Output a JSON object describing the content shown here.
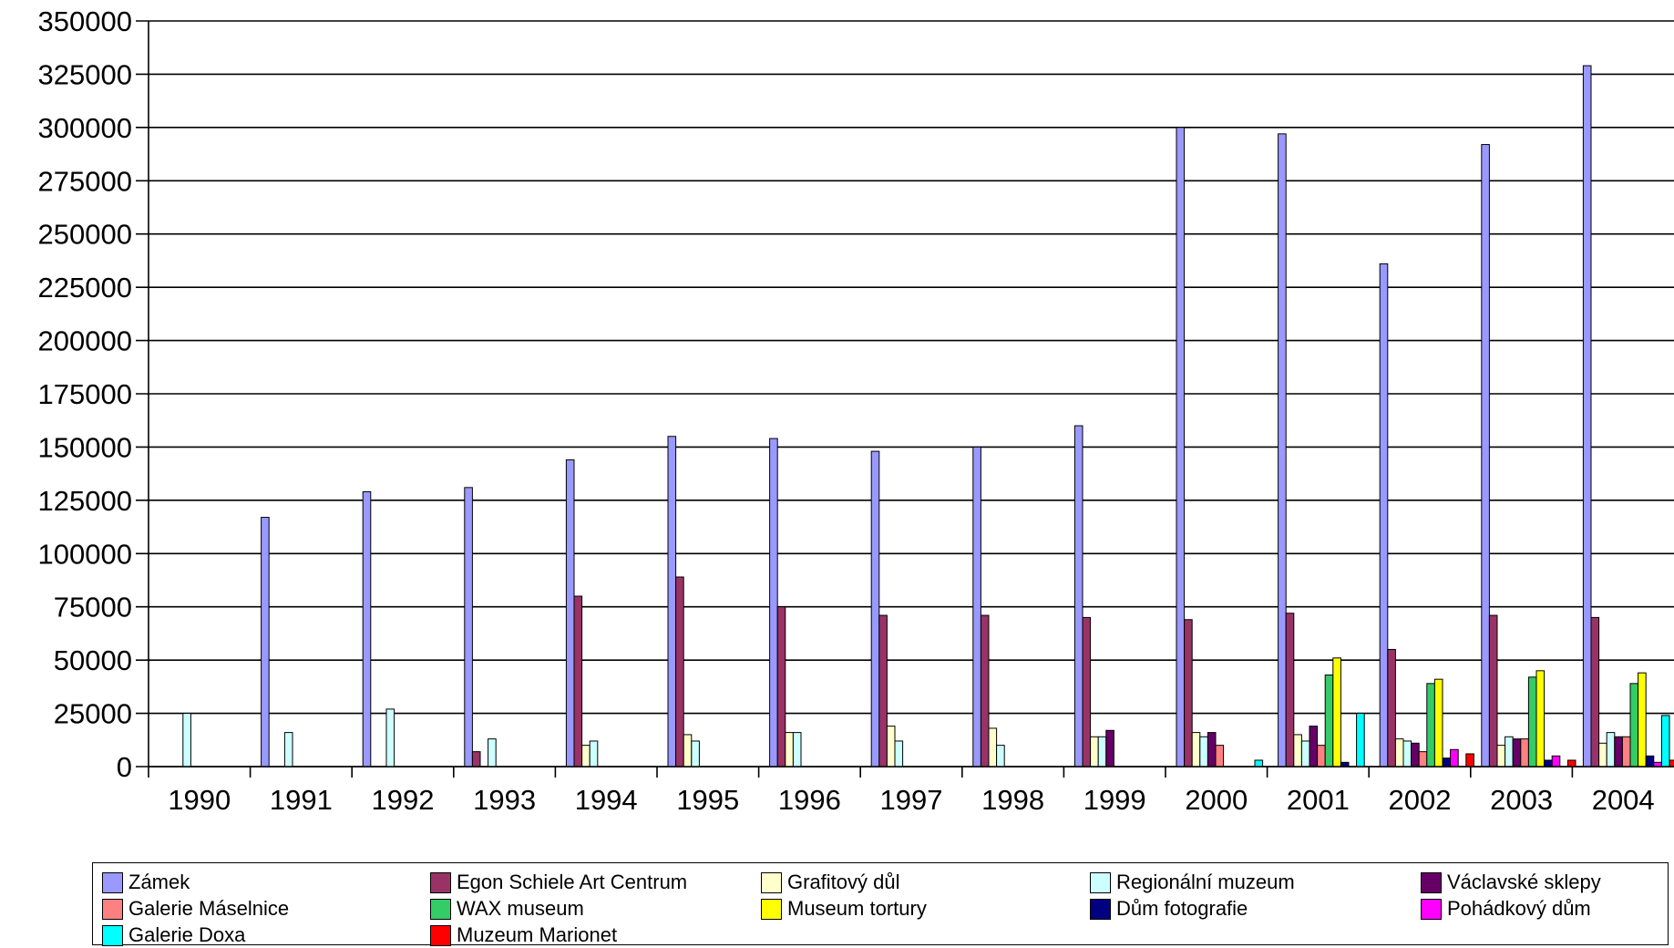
{
  "chart_data": {
    "type": "bar",
    "title": "",
    "xlabel": "",
    "ylabel": "",
    "ylim": [
      0,
      350000
    ],
    "yticks": [
      "0",
      "25000",
      "50000",
      "75000",
      "100000",
      "125000",
      "150000",
      "175000",
      "200000",
      "225000",
      "250000",
      "275000",
      "300000",
      "325000",
      "350000"
    ],
    "grid": "horizontal",
    "legend_position": "bottom",
    "categories": [
      "1990",
      "1991",
      "1992",
      "1993",
      "1994",
      "1995",
      "1996",
      "1997",
      "1998",
      "1999",
      "2000",
      "2001",
      "2002",
      "2003",
      "2004"
    ],
    "series": [
      {
        "name": "Zámek",
        "color": "#9999ff",
        "values": [
          0,
          117000,
          129000,
          131000,
          144000,
          155000,
          154000,
          148000,
          150000,
          160000,
          300000,
          297000,
          236000,
          292000,
          329000
        ]
      },
      {
        "name": "Egon Schiele Art Centrum",
        "color": "#993366",
        "values": [
          0,
          0,
          0,
          7000,
          80000,
          89000,
          75000,
          71000,
          71000,
          70000,
          69000,
          72000,
          55000,
          71000,
          70000
        ]
      },
      {
        "name": "Grafitový důl",
        "color": "#ffffcc",
        "values": [
          0,
          0,
          0,
          0,
          10000,
          15000,
          16000,
          19000,
          18000,
          14000,
          16000,
          15000,
          13000,
          10000,
          11000
        ]
      },
      {
        "name": "Regionální muzeum",
        "color": "#ccffff",
        "values": [
          25000,
          16000,
          27000,
          13000,
          12000,
          12000,
          16000,
          12000,
          10000,
          14000,
          14000,
          12000,
          12000,
          14000,
          16000
        ]
      },
      {
        "name": "Václavské sklepy",
        "color": "#660066",
        "values": [
          0,
          0,
          0,
          0,
          0,
          0,
          0,
          0,
          0,
          17000,
          16000,
          19000,
          11000,
          13000,
          14000
        ]
      },
      {
        "name": "Galerie Máselnice",
        "color": "#ff8080",
        "values": [
          0,
          0,
          0,
          0,
          0,
          0,
          0,
          0,
          0,
          0,
          10000,
          10000,
          7000,
          13000,
          14000
        ]
      },
      {
        "name": "WAX museum",
        "color": "#33cc66",
        "values": [
          0,
          0,
          0,
          0,
          0,
          0,
          0,
          0,
          0,
          0,
          0,
          43000,
          39000,
          42000,
          39000
        ]
      },
      {
        "name": "Museum tortury",
        "color": "#ffff00",
        "values": [
          0,
          0,
          0,
          0,
          0,
          0,
          0,
          0,
          0,
          0,
          0,
          51000,
          41000,
          45000,
          44000
        ]
      },
      {
        "name": "Dům fotografie",
        "color": "#000080",
        "values": [
          0,
          0,
          0,
          0,
          0,
          0,
          0,
          0,
          0,
          0,
          0,
          2000,
          4000,
          3000,
          5000
        ]
      },
      {
        "name": "Pohádkový dům",
        "color": "#ff00ff",
        "values": [
          0,
          0,
          0,
          0,
          0,
          0,
          0,
          0,
          0,
          0,
          0,
          0,
          8000,
          5000,
          2000
        ]
      },
      {
        "name": "Galerie Doxa",
        "color": "#00ffff",
        "values": [
          0,
          0,
          0,
          0,
          0,
          0,
          0,
          0,
          0,
          0,
          3000,
          25000,
          0,
          0,
          24000
        ]
      },
      {
        "name": "Muzeum Marionet",
        "color": "#ff0000",
        "values": [
          0,
          0,
          0,
          0,
          0,
          0,
          0,
          0,
          0,
          0,
          0,
          0,
          6000,
          3000,
          3000
        ]
      }
    ]
  }
}
